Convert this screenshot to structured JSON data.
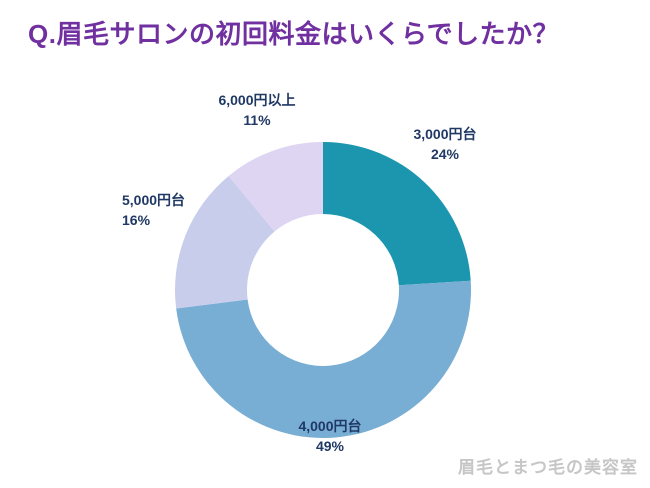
{
  "chart_data": {
    "type": "pie",
    "subtype": "donut",
    "title": "Q.眉毛サロンの初回料金はいくらでしたか？",
    "legend_position": "none",
    "start_angle_deg": 0,
    "direction": "clockwise",
    "segments": [
      {
        "label": "3,000円台",
        "value": 24,
        "pct_label": "24%",
        "color": "#1b96ae"
      },
      {
        "label": "4,000円台",
        "value": 49,
        "pct_label": "49%",
        "color": "#79aed4"
      },
      {
        "label": "5,000円台",
        "value": 16,
        "pct_label": "16%",
        "color": "#c7cdeb"
      },
      {
        "label": "6,000円以上",
        "value": 11,
        "pct_label": "11%",
        "color": "#ded5f2"
      }
    ]
  },
  "watermark": "眉毛とまつ毛の美容室",
  "colors": {
    "title": "#7030a0",
    "label_text": "#1f3864",
    "watermark": "#c6c6c6",
    "background": "#ffffff"
  },
  "geometry_note": "donut chart, hole in center, no visible axes or gridlines"
}
